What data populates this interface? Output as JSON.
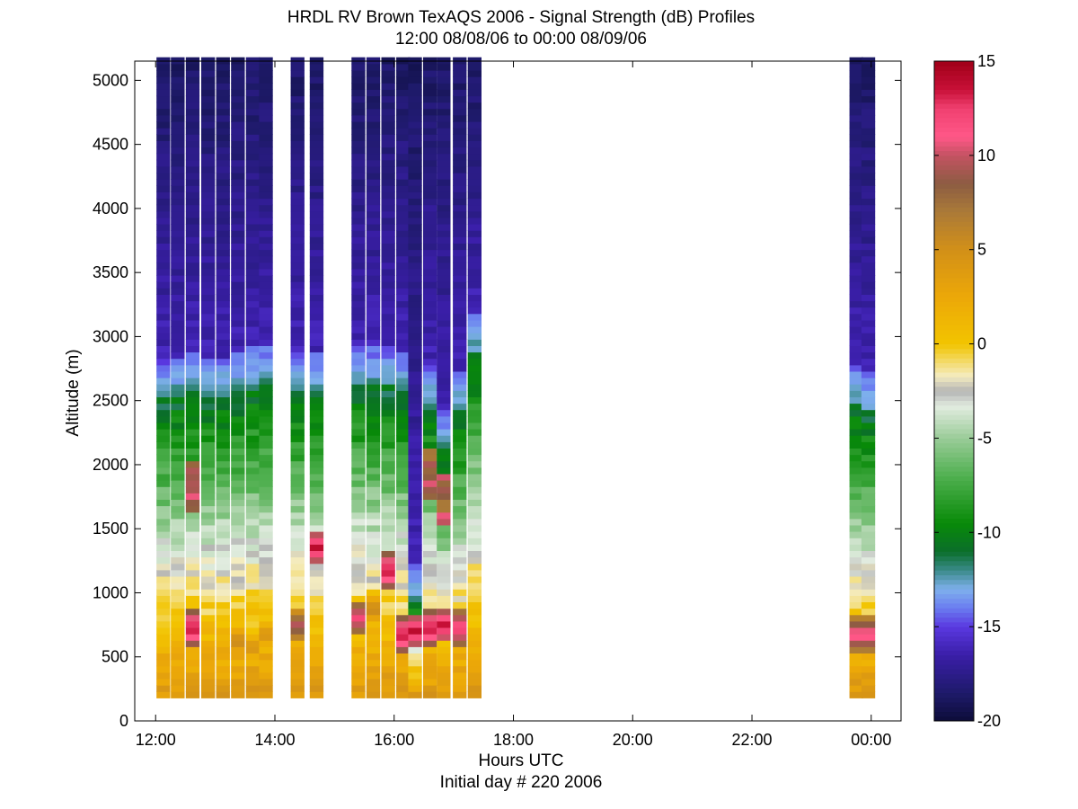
{
  "titles": {
    "line1": "HRDL RV Brown TexAQS 2006 - Signal Strength (dB) Profiles",
    "line2": "12:00 08/08/06 to 00:00 08/09/06"
  },
  "axes": {
    "xlabel": "Hours UTC",
    "xlabel2": "Initial day # 220  2006",
    "ylabel": "Altitude (m)"
  },
  "chart_data": {
    "type": "heatmap",
    "x_unit": "hours UTC",
    "xlim": [
      11.65,
      24.5
    ],
    "ylim": [
      0,
      5150
    ],
    "xticks": [
      12,
      14,
      16,
      18,
      20,
      22,
      24
    ],
    "xtick_labels": [
      "12:00",
      "14:00",
      "16:00",
      "18:00",
      "20:00",
      "22:00",
      "00:00"
    ],
    "yticks": [
      0,
      500,
      1000,
      1500,
      2000,
      2500,
      3000,
      3500,
      4000,
      4500,
      5000
    ],
    "ytick_labels": [
      "0",
      "500",
      "1000",
      "1500",
      "2000",
      "2500",
      "3000",
      "3500",
      "4000",
      "4500",
      "5000"
    ],
    "altitude_range_m": [
      180,
      5150
    ],
    "colorbar": {
      "label": "Signal Strength (dB)",
      "vmin": -20,
      "vmax": 15,
      "ticks": [
        -20,
        -15,
        -10,
        -5,
        0,
        5,
        10,
        15
      ],
      "tick_labels": [
        "-20",
        "-15",
        "-10",
        "-5",
        "0",
        "5",
        "10",
        "15"
      ],
      "colormap": [
        [
          -20,
          "#0c0c38"
        ],
        [
          -18.5,
          "#1e1a6a"
        ],
        [
          -16.5,
          "#3a1ea8"
        ],
        [
          -15,
          "#5a38e0"
        ],
        [
          -14,
          "#6a7cf0"
        ],
        [
          -13,
          "#7eb0ec"
        ],
        [
          -12,
          "#3a8a8a"
        ],
        [
          -11,
          "#0a6e2a"
        ],
        [
          -9.5,
          "#088a08"
        ],
        [
          -7,
          "#50b050"
        ],
        [
          -5,
          "#9acc98"
        ],
        [
          -3.3,
          "#e2ece0"
        ],
        [
          -2.5,
          "#b4b4b4"
        ],
        [
          -1.7,
          "#f4ecc0"
        ],
        [
          0,
          "#f2c400"
        ],
        [
          2.5,
          "#eca808"
        ],
        [
          5,
          "#d29018"
        ],
        [
          7,
          "#aa7a38"
        ],
        [
          8.5,
          "#8c5c42"
        ],
        [
          10,
          "#c45262"
        ],
        [
          11,
          "#ff5888"
        ],
        [
          12.5,
          "#f04070"
        ],
        [
          13.5,
          "#c81038"
        ],
        [
          15,
          "#a00018"
        ]
      ]
    },
    "profiles": [
      {
        "time": 12.13,
        "bl_top": 2480,
        "peak": 3,
        "peak_alt": 400,
        "spike": null
      },
      {
        "time": 12.37,
        "bl_top": 2520,
        "peak": 2.5,
        "peak_alt": 450,
        "spike": null
      },
      {
        "time": 12.62,
        "bl_top": 2550,
        "peak": 14,
        "peak_alt": 700,
        "spike": 1800
      },
      {
        "time": 12.88,
        "bl_top": 2500,
        "peak": 4,
        "peak_alt": 500,
        "spike": null
      },
      {
        "time": 13.13,
        "bl_top": 2520,
        "peak": 3.5,
        "peak_alt": 500,
        "spike": null
      },
      {
        "time": 13.38,
        "bl_top": 2550,
        "peak": 6,
        "peak_alt": 600,
        "spike": null
      },
      {
        "time": 13.63,
        "bl_top": 2600,
        "peak": 5,
        "peak_alt": 550,
        "spike": null
      },
      {
        "time": 13.85,
        "bl_top": 2620,
        "peak": 5,
        "peak_alt": 650,
        "spike": null
      },
      {
        "time": 14.38,
        "bl_top": 2560,
        "peak": 10,
        "peak_alt": 720,
        "spike": null
      },
      {
        "time": 14.7,
        "bl_top": 2550,
        "peak": 14,
        "peak_alt": 1330,
        "spike": null
      },
      {
        "time": 15.4,
        "bl_top": 2620,
        "peak": 12,
        "peak_alt": 780,
        "spike": null
      },
      {
        "time": 15.65,
        "bl_top": 2600,
        "peak": 6,
        "peak_alt": 850,
        "spike": null
      },
      {
        "time": 15.9,
        "bl_top": 2580,
        "peak": 14,
        "peak_alt": 1150,
        "spike": null
      },
      {
        "time": 16.15,
        "bl_top": 2550,
        "peak": 14,
        "peak_alt": 650,
        "spike": null
      },
      {
        "time": 16.35,
        "bl_top": 900,
        "peak": 14,
        "peak_alt": 680,
        "spike": null
      },
      {
        "time": 16.6,
        "bl_top": 2450,
        "peak": 14,
        "peak_alt": 700,
        "spike": 1900
      },
      {
        "time": 16.83,
        "bl_top": 2100,
        "peak": 14,
        "peak_alt": 720,
        "spike": 1700
      },
      {
        "time": 17.1,
        "bl_top": 2400,
        "peak": 13,
        "peak_alt": 700,
        "spike": null
      },
      {
        "time": 17.35,
        "bl_top": 2850,
        "peak": 3,
        "peak_alt": 600,
        "spike": null
      },
      {
        "time": 23.75,
        "bl_top": 2450,
        "peak": 12,
        "peak_alt": 650,
        "spike": null
      },
      {
        "time": 23.95,
        "bl_top": 2380,
        "peak": 12,
        "peak_alt": 650,
        "spike": null
      }
    ]
  }
}
